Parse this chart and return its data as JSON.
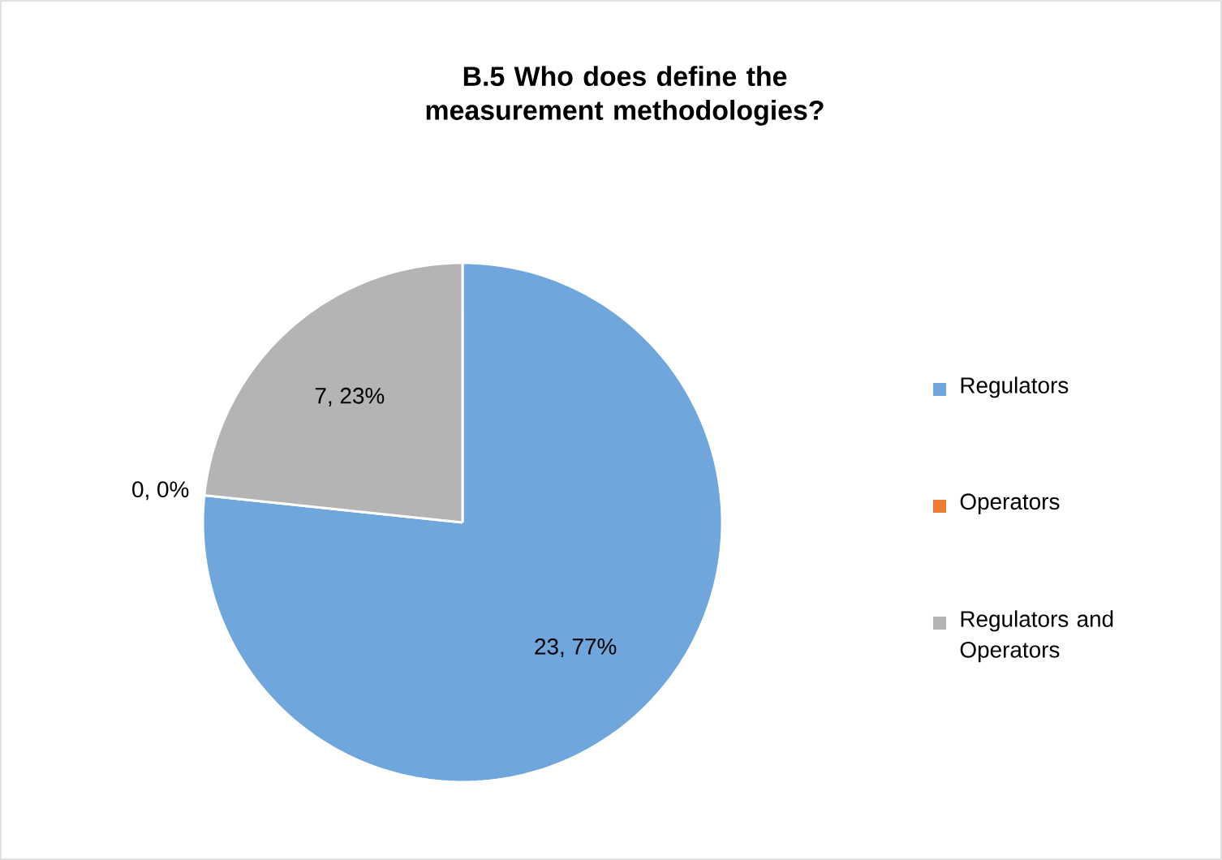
{
  "chart_data": {
    "type": "pie",
    "title": "B.5 Who does define the measurement methodologies?",
    "categories": [
      "Regulators",
      "Operators",
      "Regulators and Operators"
    ],
    "values": [
      23,
      0,
      7
    ],
    "colors": [
      "#6fa6dc",
      "#ed7d31",
      "#b4b4b4"
    ],
    "value_labels": [
      "23, 77%",
      "0, 0%",
      "7, 23%"
    ],
    "legend": "right"
  }
}
